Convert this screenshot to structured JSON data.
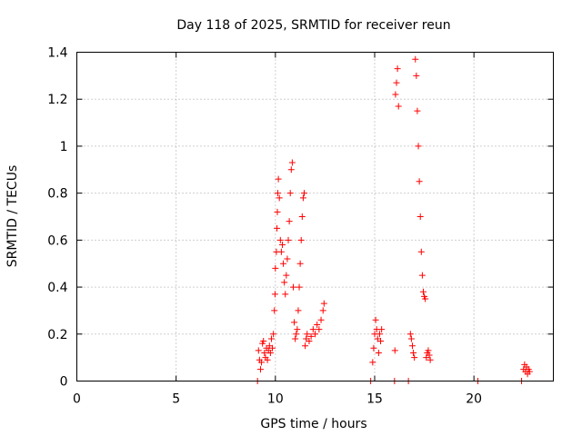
{
  "chart_data": {
    "type": "scatter",
    "title": "Day 118 of 2025, SRMTID for receiver reun",
    "xlabel": "GPS time / hours",
    "ylabel": "SRMTID / TECUs",
    "xlim": [
      0,
      24
    ],
    "ylim": [
      0,
      1.4
    ],
    "xticks": [
      0,
      5,
      10,
      15,
      20
    ],
    "yticks": [
      0,
      0.2,
      0.4,
      0.6,
      0.8,
      1,
      1.2,
      1.4
    ],
    "ytick_labels": [
      "0",
      "0.2",
      "0.4",
      "0.6",
      "0.8",
      "1",
      "1.2",
      "1.4"
    ],
    "xtick_labels": [
      "0",
      "5",
      "10",
      "15",
      "20"
    ],
    "grid": true,
    "marker": "+",
    "color": "#ff0000",
    "series": [
      {
        "name": "SRMTID",
        "points": [
          [
            9.1,
            0.0
          ],
          [
            9.15,
            0.13
          ],
          [
            9.2,
            0.09
          ],
          [
            9.25,
            0.05
          ],
          [
            9.3,
            0.08
          ],
          [
            9.35,
            0.16
          ],
          [
            9.4,
            0.17
          ],
          [
            9.45,
            0.12
          ],
          [
            9.5,
            0.1
          ],
          [
            9.55,
            0.14
          ],
          [
            9.6,
            0.09
          ],
          [
            9.65,
            0.13
          ],
          [
            9.7,
            0.15
          ],
          [
            9.75,
            0.12
          ],
          [
            9.8,
            0.18
          ],
          [
            9.85,
            0.14
          ],
          [
            9.9,
            0.2
          ],
          [
            9.95,
            0.3
          ],
          [
            9.98,
            0.37
          ],
          [
            10.0,
            0.48
          ],
          [
            10.05,
            0.55
          ],
          [
            10.08,
            0.65
          ],
          [
            10.1,
            0.72
          ],
          [
            10.12,
            0.8
          ],
          [
            10.15,
            0.86
          ],
          [
            10.2,
            0.78
          ],
          [
            10.25,
            0.6
          ],
          [
            10.3,
            0.55
          ],
          [
            10.35,
            0.58
          ],
          [
            10.4,
            0.5
          ],
          [
            10.45,
            0.42
          ],
          [
            10.5,
            0.37
          ],
          [
            10.55,
            0.45
          ],
          [
            10.6,
            0.52
          ],
          [
            10.65,
            0.6
          ],
          [
            10.7,
            0.68
          ],
          [
            10.75,
            0.8
          ],
          [
            10.8,
            0.9
          ],
          [
            10.85,
            0.93
          ],
          [
            10.9,
            0.4
          ],
          [
            10.95,
            0.25
          ],
          [
            11.0,
            0.18
          ],
          [
            11.05,
            0.2
          ],
          [
            11.1,
            0.22
          ],
          [
            11.15,
            0.3
          ],
          [
            11.2,
            0.4
          ],
          [
            11.25,
            0.5
          ],
          [
            11.3,
            0.6
          ],
          [
            11.35,
            0.7
          ],
          [
            11.4,
            0.78
          ],
          [
            11.45,
            0.8
          ],
          [
            11.5,
            0.15
          ],
          [
            11.55,
            0.18
          ],
          [
            11.6,
            0.2
          ],
          [
            11.7,
            0.17
          ],
          [
            11.8,
            0.19
          ],
          [
            11.9,
            0.22
          ],
          [
            12.0,
            0.2
          ],
          [
            12.1,
            0.24
          ],
          [
            12.2,
            0.22
          ],
          [
            12.3,
            0.26
          ],
          [
            12.4,
            0.3
          ],
          [
            12.45,
            0.33
          ],
          [
            14.8,
            0.0
          ],
          [
            14.9,
            0.08
          ],
          [
            14.95,
            0.14
          ],
          [
            15.0,
            0.2
          ],
          [
            15.05,
            0.26
          ],
          [
            15.1,
            0.22
          ],
          [
            15.15,
            0.18
          ],
          [
            15.2,
            0.12
          ],
          [
            15.25,
            0.2
          ],
          [
            15.3,
            0.17
          ],
          [
            15.35,
            0.22
          ],
          [
            16.0,
            0.0
          ],
          [
            16.02,
            0.13
          ],
          [
            16.05,
            1.22
          ],
          [
            16.1,
            1.27
          ],
          [
            16.15,
            1.33
          ],
          [
            16.2,
            1.17
          ],
          [
            16.7,
            0.0
          ],
          [
            16.8,
            0.2
          ],
          [
            16.85,
            0.18
          ],
          [
            16.9,
            0.15
          ],
          [
            16.95,
            0.12
          ],
          [
            17.0,
            0.1
          ],
          [
            17.05,
            1.37
          ],
          [
            17.1,
            1.3
          ],
          [
            17.15,
            1.15
          ],
          [
            17.2,
            1.0
          ],
          [
            17.25,
            0.85
          ],
          [
            17.3,
            0.7
          ],
          [
            17.35,
            0.55
          ],
          [
            17.4,
            0.45
          ],
          [
            17.45,
            0.38
          ],
          [
            17.5,
            0.36
          ],
          [
            17.55,
            0.35
          ],
          [
            17.6,
            0.1
          ],
          [
            17.65,
            0.12
          ],
          [
            17.7,
            0.13
          ],
          [
            17.75,
            0.11
          ],
          [
            17.8,
            0.09
          ],
          [
            20.2,
            0.0
          ],
          [
            22.4,
            0.0
          ],
          [
            22.5,
            0.05
          ],
          [
            22.55,
            0.07
          ],
          [
            22.6,
            0.04
          ],
          [
            22.65,
            0.06
          ],
          [
            22.7,
            0.03
          ],
          [
            22.75,
            0.05
          ],
          [
            22.8,
            0.04
          ]
        ]
      }
    ]
  }
}
